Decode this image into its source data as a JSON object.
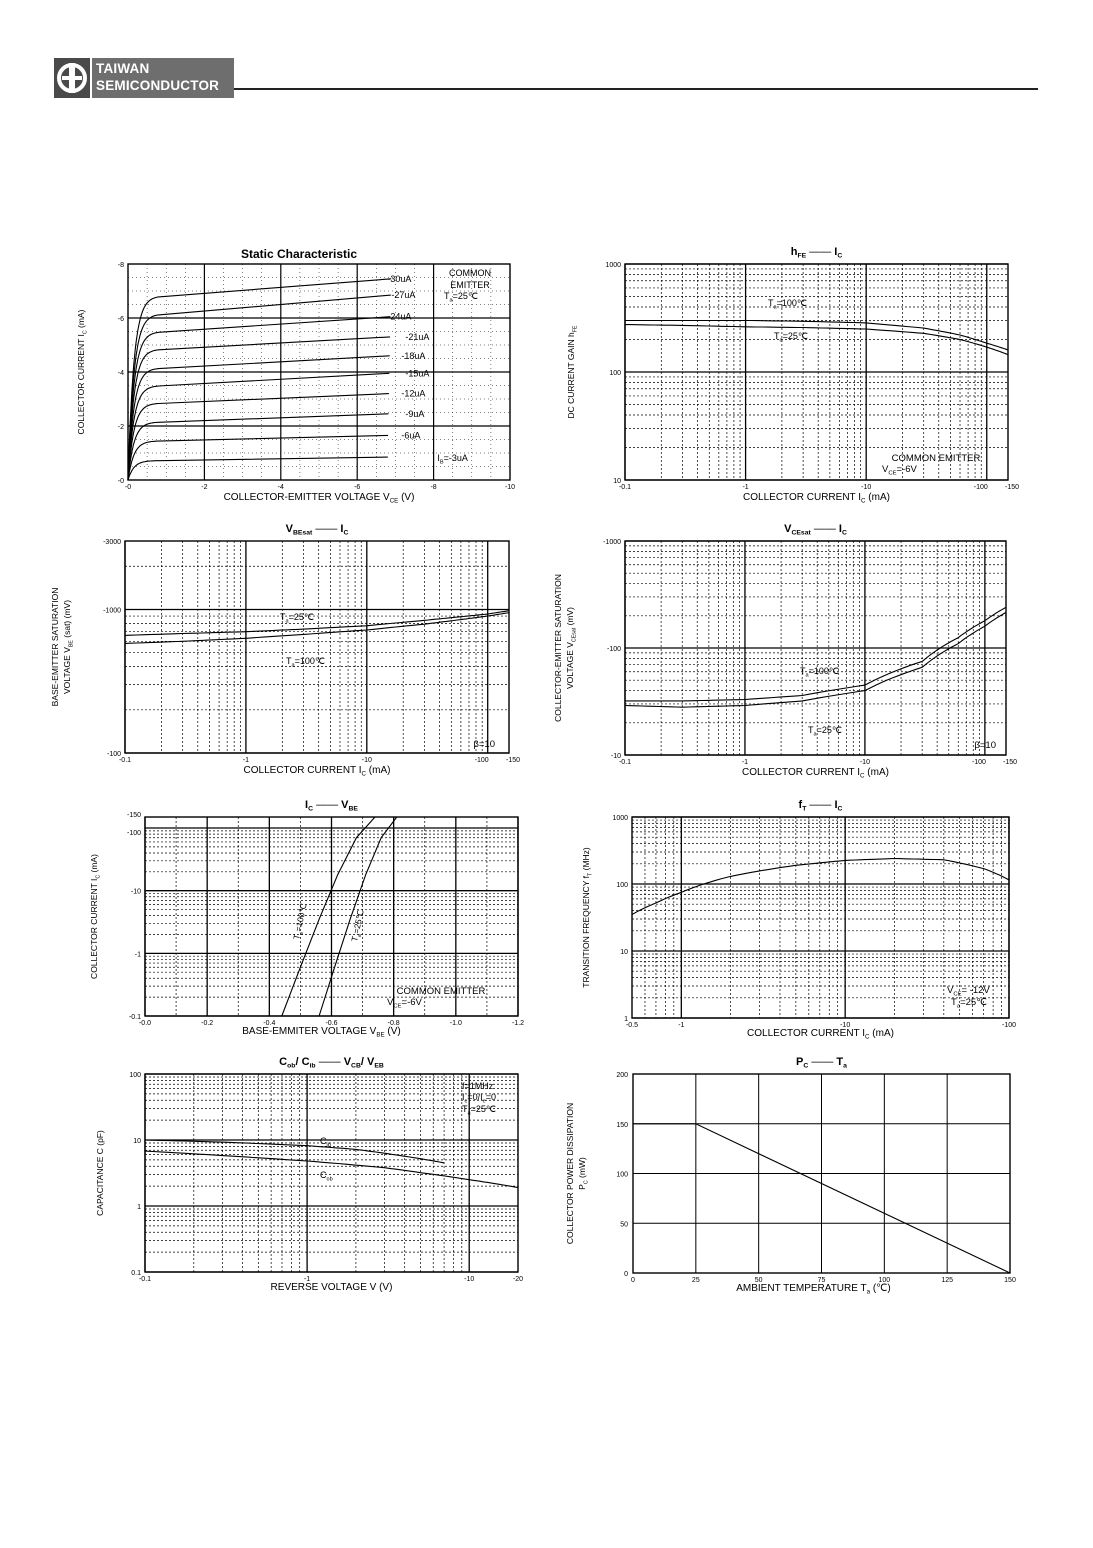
{
  "header": {
    "company_line1": "TAIWAN",
    "company_line2": "SEMICONDUCTOR"
  },
  "chart_data": [
    {
      "id": "static",
      "type": "line",
      "title": "Static Characteristic",
      "xlabel": "COLLECTOR-EMITTER VOLTAGE   V",
      "xlabel_sub": "CE",
      "xlabel_unit": "(V)",
      "ylabel": "COLLECTOR CURRENT   I",
      "ylabel_sub": "C",
      "ylabel_unit": "(mA)",
      "xlim": [
        0,
        -10
      ],
      "ylim": [
        0,
        -8
      ],
      "xticks": [
        "-0",
        "-2",
        "-4",
        "-6",
        "-8",
        "-10"
      ],
      "yticks": [
        "-0",
        "-2",
        "-4",
        "-6",
        "-8"
      ],
      "annotation": [
        "COMMON",
        "EMITTER",
        "T",
        "a",
        "=25℃"
      ],
      "series": [
        {
          "name": "-30uA",
          "sat": 6.82,
          "end": 7.45
        },
        {
          "name": "-27uA",
          "sat": 6.15,
          "end": 6.85
        },
        {
          "name": "-24uA",
          "sat": 5.5,
          "end": 6.05
        },
        {
          "name": "-21uA",
          "sat": 4.85,
          "end": 5.3
        },
        {
          "name": "-18uA",
          "sat": 4.15,
          "end": 4.6
        },
        {
          "name": "-15uA",
          "sat": 3.5,
          "end": 3.95
        },
        {
          "name": "-12uA",
          "sat": 2.85,
          "end": 3.2
        },
        {
          "name": "-9uA",
          "sat": 2.15,
          "end": 2.45
        },
        {
          "name": "-6uA",
          "sat": 1.45,
          "end": 1.65
        },
        {
          "name": "-3uA",
          "sat": 0.72,
          "end": 0.85
        }
      ],
      "last_label_prefix": "I",
      "last_label_sub": "B",
      "last_label_value": "=-3uA"
    },
    {
      "id": "hfe",
      "type": "line",
      "title": "h",
      "title_sub": "FE",
      "title_dash": "——",
      "title2": "I",
      "title2_sub": "C",
      "xlabel": "COLLECTOR CURRENT     I",
      "xlabel_sub": "C",
      "xlabel_unit": "(mA)",
      "ylabel": "DC CURRENT GAIN  h",
      "ylabel_sub": "FE",
      "xlim": [
        -0.1,
        -150
      ],
      "ylim": [
        10,
        1000
      ],
      "xticks": [
        "-0.1",
        "-1",
        "-10",
        "-100",
        "-150"
      ],
      "yticks": [
        "1000",
        "100",
        "10"
      ],
      "annotation": [
        "COMMON EMITTER",
        "V",
        "CE",
        "=-6V"
      ],
      "series": [
        {
          "name": "T =100℃",
          "label_main": "T",
          "label_sub": "a",
          "label_rest": "=100℃",
          "x": [
            -0.1,
            -0.3,
            -1,
            -3,
            -10,
            -30,
            -60,
            -100,
            -150
          ],
          "y": [
            300,
            300,
            300,
            295,
            285,
            255,
            220,
            185,
            160
          ]
        },
        {
          "name": "T =25℃",
          "label_main": "T",
          "label_sub": "a",
          "label_rest": "=25℃",
          "x": [
            -0.1,
            -0.3,
            -1,
            -3,
            -10,
            -30,
            -60,
            -100,
            -150
          ],
          "y": [
            275,
            270,
            262,
            258,
            250,
            228,
            200,
            170,
            145
          ]
        }
      ]
    },
    {
      "id": "vbesat",
      "type": "line",
      "title": "V",
      "title_sub": "BEsat",
      "title_dash": "——",
      "title2": "I",
      "title2_sub": "C",
      "xlabel": "COLLECTOR CURRENT     I",
      "xlabel_sub": "C",
      "xlabel_unit": "(mA)",
      "ylabel": "BASE-EMITTER SATURATION",
      "ylabel2": "VOLTAGE   V",
      "ylabel2_sub": "BE",
      "ylabel2_unit": "(sat)  (mV)",
      "xlim": [
        -0.1,
        -150
      ],
      "ylim": [
        -100,
        -3000
      ],
      "xticks": [
        "-0.1",
        "-1",
        "-10",
        "-100",
        "-150"
      ],
      "yticks": [
        "-3000",
        "-1000",
        "-100"
      ],
      "annotation": [
        "β=10"
      ],
      "series": [
        {
          "name": "T =25℃",
          "label_main": "T",
          "label_sub": "a",
          "label_rest": "=25℃",
          "x": [
            -0.1,
            -0.3,
            -1,
            -3,
            -10,
            -30,
            -60,
            -100,
            -150
          ],
          "y": [
            -660,
            -680,
            -700,
            -730,
            -770,
            -840,
            -890,
            -930,
            -980
          ]
        },
        {
          "name": "T =100℃",
          "label_main": "T",
          "label_sub": "a",
          "label_rest": "=100℃",
          "x": [
            -0.1,
            -0.3,
            -1,
            -3,
            -10,
            -30,
            -60,
            -100,
            -150
          ],
          "y": [
            -580,
            -600,
            -630,
            -670,
            -720,
            -790,
            -850,
            -900,
            -950
          ]
        }
      ]
    },
    {
      "id": "vcesat",
      "type": "line",
      "title": "V",
      "title_sub": "CEsat",
      "title_dash": "——",
      "title2": "I",
      "title2_sub": "C",
      "xlabel": "COLLECTOR CURRENT     I",
      "xlabel_sub": "C",
      "xlabel_unit": "(mA)",
      "ylabel": "COLLECTOR-EMITTER SATURATION",
      "ylabel2": "VOLTAGE  V",
      "ylabel2_sub": "CEsat",
      "ylabel2_unit": "(mV)",
      "xlim": [
        -0.1,
        -150
      ],
      "ylim": [
        -10,
        -1000
      ],
      "xticks": [
        "-0.1",
        "-1",
        "-10",
        "-100",
        "-150"
      ],
      "yticks": [
        "-1000",
        "-100",
        "-10"
      ],
      "annotation": [
        "β=10"
      ],
      "series": [
        {
          "name": "T =100℃",
          "label_main": "T",
          "label_sub": "a",
          "label_rest": "=100℃",
          "x": [
            -0.1,
            -0.3,
            -1,
            -3,
            -10,
            -30,
            -60,
            -100,
            -150
          ],
          "y": [
            -32,
            -32,
            -33,
            -36,
            -45,
            -75,
            -125,
            -180,
            -240
          ]
        },
        {
          "name": "T =25℃",
          "label_main": "T",
          "label_sub": "a",
          "label_rest": "=25℃",
          "x": [
            -0.1,
            -0.3,
            -1,
            -3,
            -10,
            -30,
            -60,
            -100,
            -150
          ],
          "y": [
            -29,
            -28,
            -29,
            -32,
            -40,
            -66,
            -110,
            -160,
            -215
          ]
        }
      ]
    },
    {
      "id": "icvbe",
      "type": "line",
      "title": "I",
      "title_sub": "C",
      "title_dash": "——",
      "title2": "V",
      "title2_sub": "BE",
      "xlabel": "BASE-EMMITER VOLTAGE  V",
      "xlabel_sub": "BE",
      "xlabel_unit": "(V)",
      "ylabel": "COLLECTOR CURRENT   I",
      "ylabel_sub": "C",
      "ylabel_unit": "(mA)",
      "xlim": [
        0,
        -1.2
      ],
      "ylim": [
        -0.1,
        -150
      ],
      "xticks": [
        "-0.0",
        "-0.2",
        "-0.4",
        "-0.6",
        "-0.8",
        "-1.0",
        "-1.2"
      ],
      "yticks": [
        "-150",
        "-100",
        "-10",
        "-1",
        "-0.1"
      ],
      "annotation": [
        "COMMON EMITTER",
        "V",
        "CE",
        "=-6V"
      ],
      "series": [
        {
          "name": "T =100℃",
          "label_main": "T",
          "label_sub": "a",
          "label_rest": "=100℃",
          "x": [
            -0.44,
            -0.5,
            -0.56,
            -0.62,
            -0.68,
            -0.74
          ],
          "y": [
            -0.1,
            -0.6,
            -3.5,
            -18,
            -70,
            -150
          ]
        },
        {
          "name": "T =25℃",
          "label_main": "T",
          "label_sub": "a",
          "label_rest": "=25℃",
          "x": [
            -0.56,
            -0.61,
            -0.66,
            -0.71,
            -0.76,
            -0.81
          ],
          "y": [
            -0.1,
            -0.6,
            -3.5,
            -18,
            -70,
            -150
          ]
        }
      ]
    },
    {
      "id": "ft",
      "type": "line",
      "title": "f",
      "title_sub": "T",
      "title_dash": "——",
      "title2": "I",
      "title2_sub": "C",
      "xlabel": "COLLECTOR CURRENT     I",
      "xlabel_sub": "C",
      "xlabel_unit": "(mA)",
      "ylabel": "TRANSITION FREQUENCY  f",
      "ylabel_sub": "T",
      "ylabel_unit": "(MHz)",
      "xlim": [
        -0.5,
        -100
      ],
      "ylim": [
        1,
        1000
      ],
      "xticks": [
        "-0.5",
        "-1",
        "-10",
        "-100"
      ],
      "yticks": [
        "1000",
        "100",
        "10",
        "1"
      ],
      "annotation": [
        "V",
        "CE",
        "= -12V",
        "T",
        "a",
        "=25℃"
      ],
      "series": [
        {
          "name": "f",
          "x": [
            -0.5,
            -0.7,
            -1,
            -2,
            -5,
            -10,
            -20,
            -40,
            -70,
            -100
          ],
          "y": [
            35,
            52,
            75,
            130,
            190,
            225,
            240,
            230,
            170,
            115
          ]
        }
      ]
    },
    {
      "id": "cap",
      "type": "line",
      "title": "C",
      "title_sub": "ob",
      "title_mid": "/ C",
      "title_mid_sub": "ib",
      "title_dash": "——",
      "title2": "V",
      "title2_sub": "CB",
      "title2_mid": "/ V",
      "title2_mid_sub": "EB",
      "xlabel": "REVERSE  VOLTAGE   V   (V)",
      "ylabel": "CAPACITANCE  C   (pF)",
      "xlim": [
        -0.1,
        -20
      ],
      "ylim": [
        0.1,
        100
      ],
      "xticks": [
        "-0.1",
        "-1",
        "-10",
        "-20"
      ],
      "yticks": [
        "100",
        "10",
        "1",
        "0.1"
      ],
      "annotation": [
        "f=1MHz",
        "I",
        "c",
        "=0/I",
        "e",
        "=0",
        "T",
        "a",
        "=25℃"
      ],
      "series": [
        {
          "name": "C",
          "label_sub": "ib",
          "x": [
            -0.1,
            -0.3,
            -1,
            -2,
            -3,
            -5,
            -7
          ],
          "y": [
            10,
            9.3,
            8.2,
            7.2,
            6.3,
            5.2,
            4.5
          ]
        },
        {
          "name": "C",
          "label_sub": "ob",
          "x": [
            -0.1,
            -0.3,
            -1,
            -3,
            -5,
            -10,
            -20
          ],
          "y": [
            6.8,
            5.8,
            4.8,
            3.8,
            3.2,
            2.5,
            1.9
          ]
        }
      ]
    },
    {
      "id": "pc",
      "type": "line",
      "title": "P",
      "title_sub": "C",
      "title_dash": "——",
      "title2": "T",
      "title2_sub": "a",
      "xlabel": "AMBIENT TEMPERATURE    T",
      "xlabel_sub": "a",
      "xlabel_unit": "(℃)",
      "ylabel": "COLLECTOR POWER DISSIPATION",
      "ylabel2": "P",
      "ylabel2_sub": "C",
      "ylabel2_unit": "(mW)",
      "xlim": [
        0,
        150
      ],
      "ylim": [
        0,
        200
      ],
      "xticks": [
        "0",
        "25",
        "50",
        "75",
        "100",
        "125",
        "150"
      ],
      "yticks": [
        "200",
        "150",
        "100",
        "50",
        "0"
      ],
      "series": [
        {
          "name": "P",
          "x": [
            0,
            25,
            150
          ],
          "y": [
            150,
            150,
            0
          ]
        }
      ]
    }
  ]
}
